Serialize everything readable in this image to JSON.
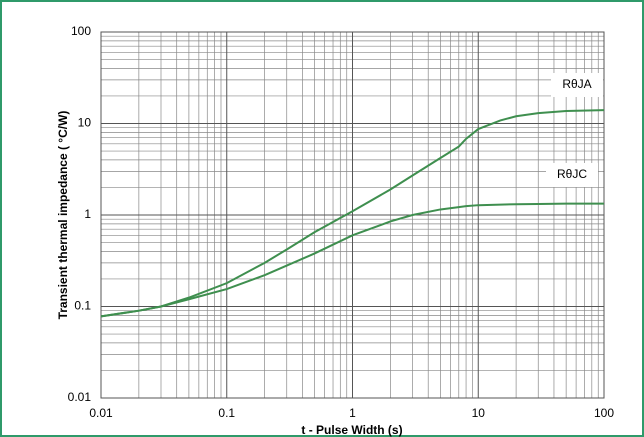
{
  "chart_data": {
    "type": "line",
    "xlabel": "t - Pulse Width (s)",
    "ylabel": "Transient thermal impedance ( °C/W)",
    "x": [
      0.01,
      0.02,
      0.03,
      0.05,
      0.1,
      0.2,
      0.3,
      0.5,
      1,
      2,
      3,
      5,
      7,
      8,
      10,
      15,
      20,
      30,
      50,
      100
    ],
    "series": [
      {
        "name": "RθJA",
        "color": "#3f8f4f",
        "values": [
          0.078,
          0.09,
          0.1,
          0.125,
          0.18,
          0.3,
          0.42,
          0.65,
          1.1,
          1.9,
          2.7,
          4.2,
          5.6,
          6.8,
          8.7,
          10.8,
          12,
          13,
          13.7,
          14
        ]
      },
      {
        "name": "RθJC",
        "color": "#3f8f4f",
        "values": [
          0.078,
          0.09,
          0.1,
          0.12,
          0.155,
          0.22,
          0.28,
          0.38,
          0.6,
          0.85,
          1.0,
          1.15,
          1.22,
          1.25,
          1.28,
          1.3,
          1.31,
          1.32,
          1.33,
          1.33
        ]
      }
    ],
    "xlim": [
      0.01,
      100
    ],
    "ylim": [
      0.01,
      100
    ],
    "xticks": [
      0.01,
      0.1,
      1,
      10,
      100
    ],
    "yticks": [
      0.01,
      0.1,
      1,
      10,
      100
    ],
    "x_minor_ticks": [
      0.02,
      0.03,
      0.04,
      0.05,
      0.06,
      0.07,
      0.08,
      0.09,
      0.2,
      0.3,
      0.4,
      0.5,
      0.6,
      0.7,
      0.8,
      0.9,
      2,
      3,
      4,
      5,
      6,
      7,
      8,
      9,
      20,
      30,
      40,
      50,
      60,
      70,
      80,
      90
    ],
    "y_minor_ticks": [
      0.02,
      0.03,
      0.04,
      0.05,
      0.06,
      0.07,
      0.08,
      0.09,
      0.2,
      0.3,
      0.4,
      0.5,
      0.6,
      0.7,
      0.8,
      0.9,
      2,
      3,
      4,
      5,
      6,
      7,
      8,
      9,
      20,
      30,
      40,
      50,
      60,
      70,
      80,
      90
    ],
    "xscale": "log",
    "yscale": "log",
    "grid": true
  }
}
